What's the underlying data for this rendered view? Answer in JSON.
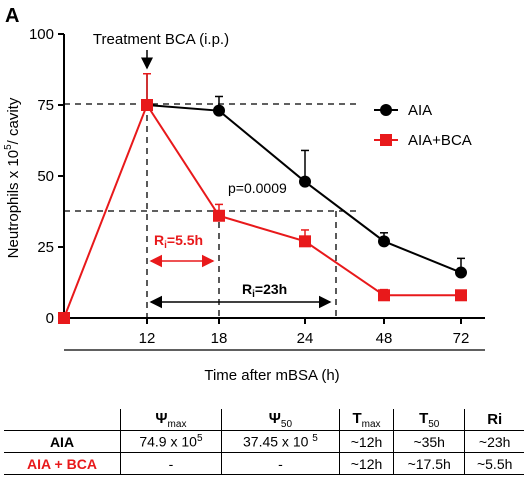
{
  "panel_label": "A",
  "annotation_treatment": "Treatment BCA (i.p.)",
  "annotation_pvalue": "p=0.0009",
  "ri_red_label": "R",
  "ri_red_sub": "i",
  "ri_red_value": "=5.5h",
  "ri_black_label": "R",
  "ri_black_sub": "i",
  "ri_black_value": "=23h",
  "colors": {
    "aia": "#000000",
    "aia_bca": "#e8191b"
  },
  "chart_data": {
    "type": "line",
    "categories": [
      "0",
      "12",
      "18",
      "24",
      "48",
      "72"
    ],
    "xlabel": "Time after mBSA (h)",
    "ylabel_main": "Neutrophils x 10",
    "ylabel_sup": "5",
    "ylabel_tail": "/ cavity",
    "ylim": [
      0,
      100
    ],
    "yticks": [
      "0",
      "25",
      "50",
      "75",
      "100"
    ],
    "xticklabels": [
      "12",
      "18",
      "24",
      "48",
      "72"
    ],
    "series": [
      {
        "name": "AIA",
        "marker": "circle",
        "color": "#000000",
        "values": [
          null,
          75,
          73,
          48,
          27,
          16
        ],
        "errors": [
          null,
          11,
          5,
          11,
          3,
          5
        ]
      },
      {
        "name": "AIA+BCA",
        "marker": "square",
        "color": "#e8191b",
        "values": [
          0,
          75,
          36,
          27,
          8,
          8
        ],
        "errors": [
          0,
          11,
          4,
          4,
          2,
          1
        ]
      }
    ],
    "reference_lines_y": [
      75,
      37.5
    ],
    "legend_position": "top-right"
  },
  "table": {
    "headers": [
      {
        "sym": "Ψ",
        "sub": "max"
      },
      {
        "sym": "Ψ",
        "sub": "50"
      },
      {
        "sym": "T",
        "sub": "max"
      },
      {
        "sym": "T",
        "sub": "50"
      },
      {
        "sym": "Ri",
        "sub": ""
      }
    ],
    "rows": [
      {
        "label": "AIA",
        "cells": [
          {
            "text": "74.9 x 10",
            "sup": "5"
          },
          {
            "text": "37.45 x 10 ",
            "sup": "5"
          },
          {
            "text": "~12h",
            "sup": ""
          },
          {
            "text": "~35h",
            "sup": ""
          },
          {
            "text": "~23h",
            "sup": ""
          }
        ]
      },
      {
        "label": "AIA + BCA",
        "cells": [
          {
            "text": "-",
            "sup": ""
          },
          {
            "text": "-",
            "sup": ""
          },
          {
            "text": "~12h",
            "sup": ""
          },
          {
            "text": "~17.5h",
            "sup": ""
          },
          {
            "text": "~5.5h",
            "sup": ""
          }
        ]
      }
    ]
  }
}
